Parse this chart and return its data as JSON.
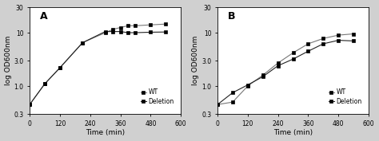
{
  "panel_A": {
    "label": "A",
    "wt_x": [
      0,
      60,
      120,
      210,
      300,
      330,
      360,
      390,
      420,
      480,
      540
    ],
    "wt_y": [
      0.45,
      1.1,
      2.2,
      6.5,
      10.0,
      11.5,
      12.5,
      13.5,
      13.5,
      14.0,
      14.5
    ],
    "del_x": [
      0,
      60,
      120,
      210,
      300,
      330,
      360,
      390,
      420,
      480,
      540
    ],
    "del_y": [
      0.45,
      1.1,
      2.2,
      6.5,
      10.5,
      10.5,
      10.5,
      10.0,
      10.0,
      10.2,
      10.3
    ],
    "xlabel": "Time (min)",
    "ylabel": "log OD600nm",
    "ylim_log": [
      0.3,
      30
    ],
    "yticks": [
      0.3,
      1.0,
      3.0,
      10.0,
      30.0
    ],
    "ytick_labels": [
      "0.3",
      "1.0",
      "3.0",
      "10",
      "30"
    ],
    "xticks": [
      0,
      120,
      240,
      360,
      480,
      600
    ],
    "xlim": [
      0,
      580
    ]
  },
  "panel_B": {
    "label": "B",
    "wt_x": [
      0,
      60,
      120,
      180,
      240,
      300,
      360,
      420,
      480,
      540
    ],
    "wt_y": [
      0.45,
      0.5,
      1.0,
      1.6,
      2.7,
      4.2,
      6.2,
      7.8,
      9.0,
      9.5
    ],
    "del_x": [
      0,
      60,
      120,
      180,
      240,
      300,
      360,
      420,
      480,
      540
    ],
    "del_y": [
      0.45,
      0.75,
      1.05,
      1.5,
      2.4,
      3.2,
      4.5,
      6.2,
      7.2,
      7.0
    ],
    "xlabel": "Time (min)",
    "ylabel": "log OD600nm",
    "ylim_log": [
      0.3,
      30
    ],
    "yticks": [
      0.3,
      1.0,
      3.0,
      10.0,
      30.0
    ],
    "ytick_labels": [
      "0.3",
      "1.0",
      "3.0",
      "10",
      "30"
    ],
    "xticks": [
      0,
      120,
      240,
      360,
      480,
      600
    ],
    "xlim": [
      0,
      580
    ]
  },
  "wt_label": "WT",
  "del_label": "Deletion",
  "marker": "s",
  "line_color_wt": "#777777",
  "line_color_del": "#222222",
  "marker_size": 3.0,
  "bg_color": "#d0d0d0",
  "plot_bg": "#ffffff",
  "legend_fontsize": 5.5,
  "axis_label_fontsize": 6.5,
  "tick_fontsize": 5.5,
  "panel_label_fontsize": 9
}
